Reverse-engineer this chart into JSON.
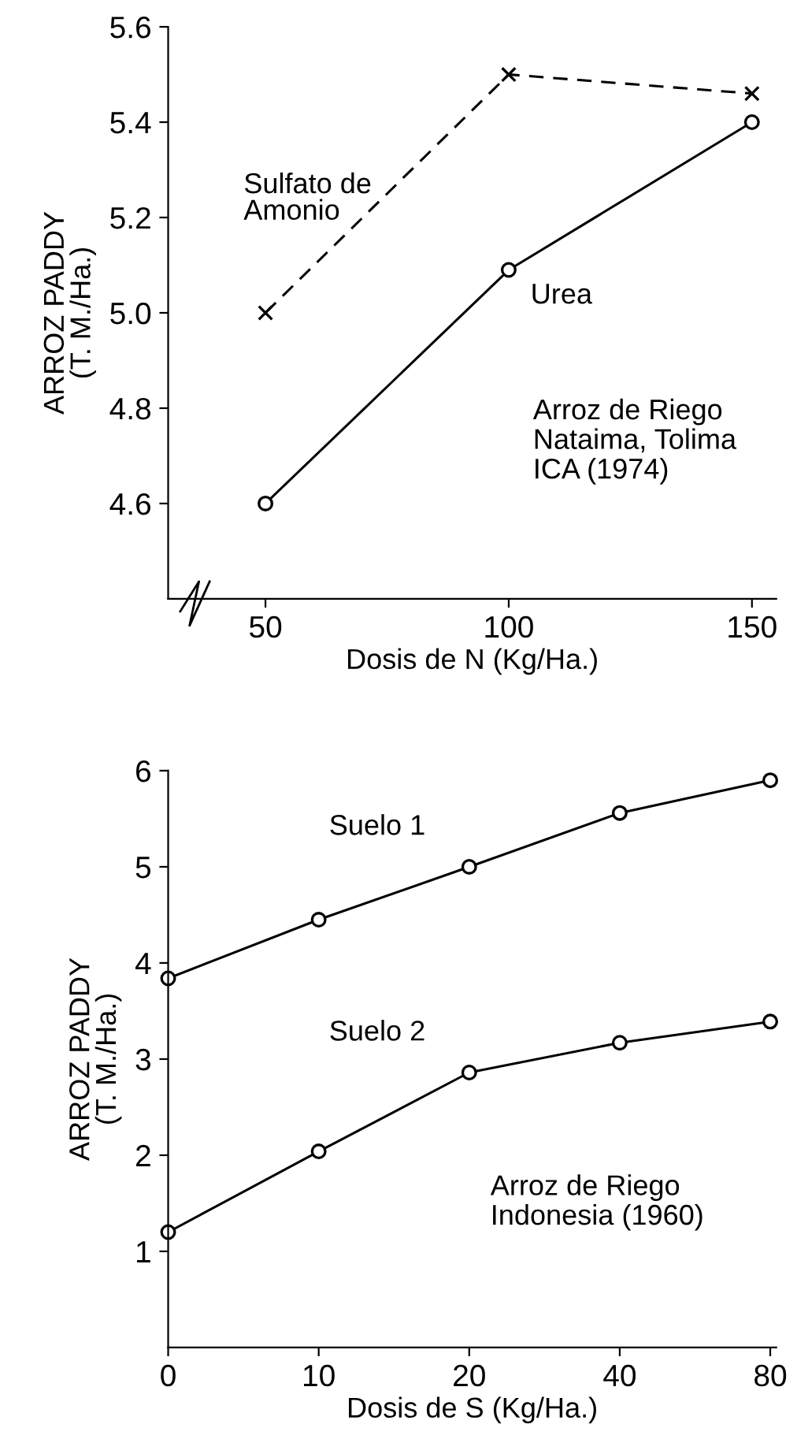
{
  "chart_data": [
    {
      "type": "line",
      "xlabel": "Dosis de N (Kg/Ha.)",
      "ylabel": "ARROZ PADDY\n(T. M./Ha.)",
      "x": [
        50,
        100,
        150
      ],
      "xlim": [
        30,
        155
      ],
      "xticks": [
        50,
        100,
        150
      ],
      "ylim": [
        4.4,
        5.6
      ],
      "yticks": [
        4.6,
        4.8,
        {
          "value": 5,
          "label": "5.0"
        },
        5.2,
        5.4,
        5.6
      ],
      "grid": false,
      "legend": false,
      "series": [
        {
          "name": "Sulfato de\nAmonio",
          "color": "#000000",
          "marker": "cross",
          "line_style": "dashed",
          "values": [
            5.0,
            5.5,
            5.46
          ]
        },
        {
          "name": "Urea",
          "color": "#000000",
          "marker": "circle",
          "line_style": "solid",
          "values": [
            4.6,
            5.09,
            5.4
          ]
        }
      ],
      "annotations": [
        "Arroz de Riego\nNataima, Tolima\nICA (1974)"
      ]
    },
    {
      "type": "line",
      "xlabel": "Dosis de S (Kg/Ha.)",
      "ylabel": "ARROZ PADDY\n(T. M./Ha.)",
      "categories": [
        "0",
        "10",
        "20",
        "40",
        "80"
      ],
      "ylim": [
        0,
        6
      ],
      "yticks": [
        1,
        2,
        3,
        4,
        5,
        6
      ],
      "grid": false,
      "legend": false,
      "series": [
        {
          "name": "Suelo 1",
          "color": "#000000",
          "marker": "circle",
          "line_style": "solid",
          "values": [
            3.84,
            4.45,
            5.0,
            5.56,
            5.9
          ]
        },
        {
          "name": "Suelo 2",
          "color": "#000000",
          "marker": "circle",
          "line_style": "solid",
          "values": [
            1.2,
            2.04,
            2.86,
            3.17,
            3.39
          ]
        }
      ],
      "annotations": [
        "Arroz de Riego\nIndonesia (1960)"
      ]
    }
  ]
}
